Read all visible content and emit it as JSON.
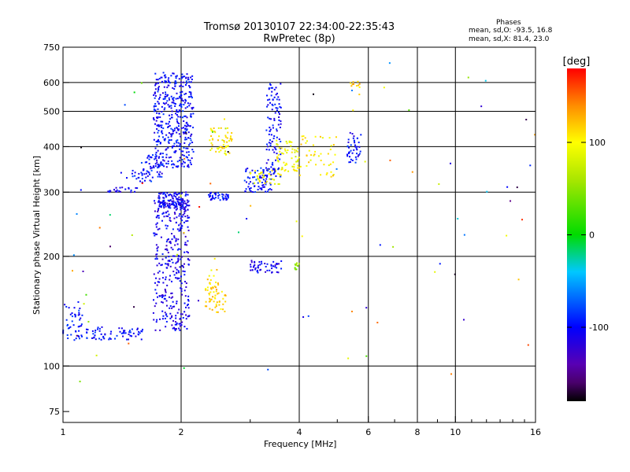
{
  "header": {
    "title_line1": "Tromsø 20130107 22:34:00-22:35:43",
    "title_line2": "RwPretec (8p)",
    "phases_label": "Phases",
    "mean_o_label": "mean, sd,O: -93.5, 16.8",
    "mean_x_label": "mean, sd,X:  81.4, 23.0"
  },
  "colorbar": {
    "unit_label": "[deg]",
    "tick_labels": [
      "100",
      "0",
      "-100"
    ],
    "tick_values": [
      100,
      0,
      -100
    ],
    "range": [
      -180,
      180
    ]
  },
  "chart_data": {
    "type": "scatter",
    "xlabel": "Frequency [MHz]",
    "ylabel": "Stationary phase Virtual Height [km]",
    "x_scale": "log",
    "y_scale": "log",
    "xlim": [
      1,
      16
    ],
    "ylim": [
      70,
      750
    ],
    "x_ticks": [
      1,
      2,
      4,
      6,
      8,
      10,
      16
    ],
    "x_tick_labels": [
      "1",
      "2",
      "4",
      "6",
      "8",
      "10",
      "16"
    ],
    "y_ticks": [
      75,
      100,
      200,
      300,
      400,
      500,
      600,
      750
    ],
    "y_tick_labels": [
      "75",
      "100",
      "200",
      "300",
      "400",
      "500",
      "600",
      "750"
    ],
    "x_gridlines": [
      2,
      4,
      6,
      8,
      10
    ],
    "y_gridlines": [
      100,
      200,
      300,
      400,
      500,
      600
    ],
    "grid": true,
    "color_variable": "phase [deg]",
    "clusters": [
      {
        "xr": [
          1.0,
          1.12
        ],
        "yr": [
          115,
          150
        ],
        "n": 45,
        "ph": -95
      },
      {
        "xr": [
          1.1,
          1.6
        ],
        "yr": [
          118,
          128
        ],
        "n": 70,
        "ph": -100
      },
      {
        "xr": [
          1.3,
          1.55
        ],
        "yr": [
          300,
          310
        ],
        "n": 22,
        "ph": -105
      },
      {
        "xr": [
          1.5,
          1.7
        ],
        "yr": [
          315,
          345
        ],
        "n": 25,
        "ph": -95
      },
      {
        "xr": [
          1.6,
          1.8
        ],
        "yr": [
          330,
          380
        ],
        "n": 40,
        "ph": -100
      },
      {
        "xr": [
          1.7,
          2.15
        ],
        "yr": [
          350,
          640
        ],
        "n": 420,
        "ph": -100
      },
      {
        "xr": [
          1.7,
          2.1
        ],
        "yr": [
          125,
          290
        ],
        "n": 350,
        "ph": -110
      },
      {
        "xr": [
          1.75,
          2.1
        ],
        "yr": [
          270,
          300
        ],
        "n": 120,
        "ph": -105
      },
      {
        "xr": [
          2.35,
          2.65
        ],
        "yr": [
          285,
          300
        ],
        "n": 40,
        "ph": -100
      },
      {
        "xr": [
          2.35,
          2.7
        ],
        "yr": [
          380,
          450
        ],
        "n": 55,
        "ph": 105
      },
      {
        "xr": [
          2.3,
          2.6
        ],
        "yr": [
          140,
          160
        ],
        "n": 40,
        "ph": 115
      },
      {
        "xr": [
          2.3,
          2.5
        ],
        "yr": [
          160,
          185
        ],
        "n": 25,
        "ph": 110
      },
      {
        "xr": [
          2.9,
          3.4
        ],
        "yr": [
          300,
          350
        ],
        "n": 70,
        "ph": -95
      },
      {
        "xr": [
          3.0,
          3.6
        ],
        "yr": [
          315,
          350
        ],
        "n": 40,
        "ph": 95
      },
      {
        "xr": [
          3.0,
          3.6
        ],
        "yr": [
          180,
          195
        ],
        "n": 50,
        "ph": -110
      },
      {
        "xr": [
          3.3,
          3.6
        ],
        "yr": [
          330,
          600
        ],
        "n": 110,
        "ph": -100
      },
      {
        "xr": [
          3.5,
          4.0
        ],
        "yr": [
          340,
          420
        ],
        "n": 60,
        "ph": 95
      },
      {
        "xr": [
          3.9,
          4.0
        ],
        "yr": [
          182,
          192
        ],
        "n": 12,
        "ph": 45
      },
      {
        "xr": [
          4.0,
          5.0
        ],
        "yr": [
          330,
          430
        ],
        "n": 45,
        "ph": 105
      },
      {
        "xr": [
          5.3,
          5.75
        ],
        "yr": [
          360,
          440
        ],
        "n": 45,
        "ph": -100
      },
      {
        "xr": [
          5.4,
          5.75
        ],
        "yr": [
          580,
          610
        ],
        "n": 10,
        "ph": 115
      }
    ]
  }
}
